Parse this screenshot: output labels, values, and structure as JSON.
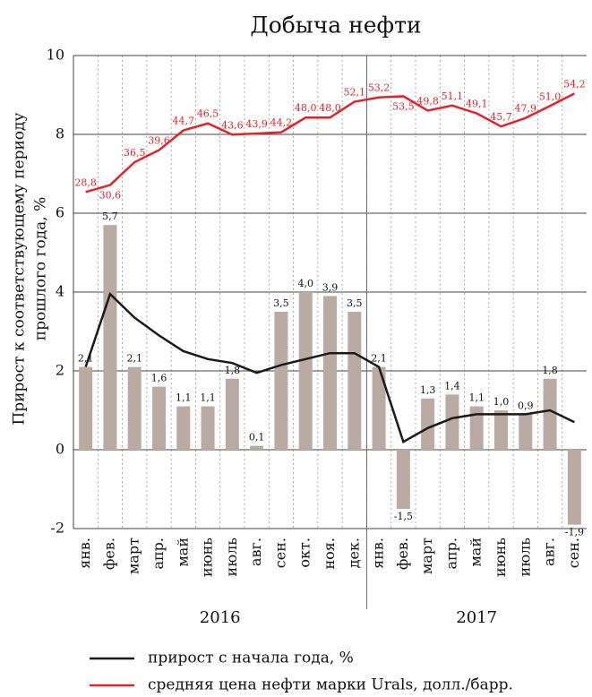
{
  "chart_data": {
    "type": "bar_line",
    "title": "Добыча нефти",
    "ylabel": [
      "Прирост к соответствующему периоду",
      "прошлого года, %"
    ],
    "categories": [
      "янв.",
      "фев.",
      "март",
      "апр.",
      "май",
      "июнь",
      "июль",
      "авг.",
      "сен.",
      "окт.",
      "ноя.",
      "дек.",
      "янв.",
      "фев.",
      "март",
      "апр.",
      "май",
      "июнь",
      "июль",
      "авг.",
      "сен."
    ],
    "year_labels": [
      "2016",
      "2017"
    ],
    "ylim": [
      -2,
      10
    ],
    "yticks": [
      -2,
      0,
      2,
      4,
      6,
      8,
      10
    ],
    "y2lim": [
      -58,
      64
    ],
    "grid": true,
    "bars": {
      "color": "#b9aaa3",
      "values": [
        2.1,
        5.7,
        2.1,
        1.6,
        1.1,
        1.1,
        1.8,
        0.1,
        3.5,
        4.0,
        3.9,
        3.5,
        2.1,
        -1.5,
        1.3,
        1.4,
        1.1,
        1.0,
        0.9,
        1.8,
        -1.9
      ],
      "value_labels": [
        "2,1",
        "5,7",
        "2,1",
        "1,6",
        "1,1",
        "1,1",
        "1,8",
        "0,1",
        "3,5",
        "4,0",
        "3,9",
        "3,5",
        "2,1",
        "-1,5",
        "1,3",
        "1,4",
        "1,1",
        "1,0",
        "0,9",
        "1,8",
        "-1,9"
      ]
    },
    "series": [
      {
        "name": "прирост с начала года, %",
        "color": "#1a1a1a",
        "values": [
          2.1,
          3.95,
          3.35,
          2.9,
          2.5,
          2.3,
          2.2,
          1.95,
          2.15,
          2.3,
          2.45,
          2.45,
          2.1,
          0.2,
          0.55,
          0.8,
          0.9,
          0.9,
          0.9,
          1.0,
          0.7
        ]
      },
      {
        "name": "средняя цена нефти марки Urals, долл./барр.",
        "color": "#e3232a",
        "axis": "y2",
        "values": [
          28.8,
          30.6,
          36.5,
          39.6,
          44.7,
          46.5,
          43.6,
          43.9,
          44.2,
          48.0,
          48.0,
          52.1,
          53.2,
          53.5,
          49.8,
          51.1,
          49.1,
          45.7,
          47.9,
          51.0,
          54.2
        ],
        "value_labels": [
          "28,8",
          "30,6",
          "36,5",
          "39,6",
          "44,7",
          "46,5",
          "43,6",
          "43,9",
          "44,2",
          "48,0",
          "48,0",
          "52,1",
          "53,2",
          "53,5",
          "49,8",
          "51,1",
          "49,1",
          "45,7",
          "47,9",
          "51,0",
          "54,2"
        ]
      }
    ]
  }
}
